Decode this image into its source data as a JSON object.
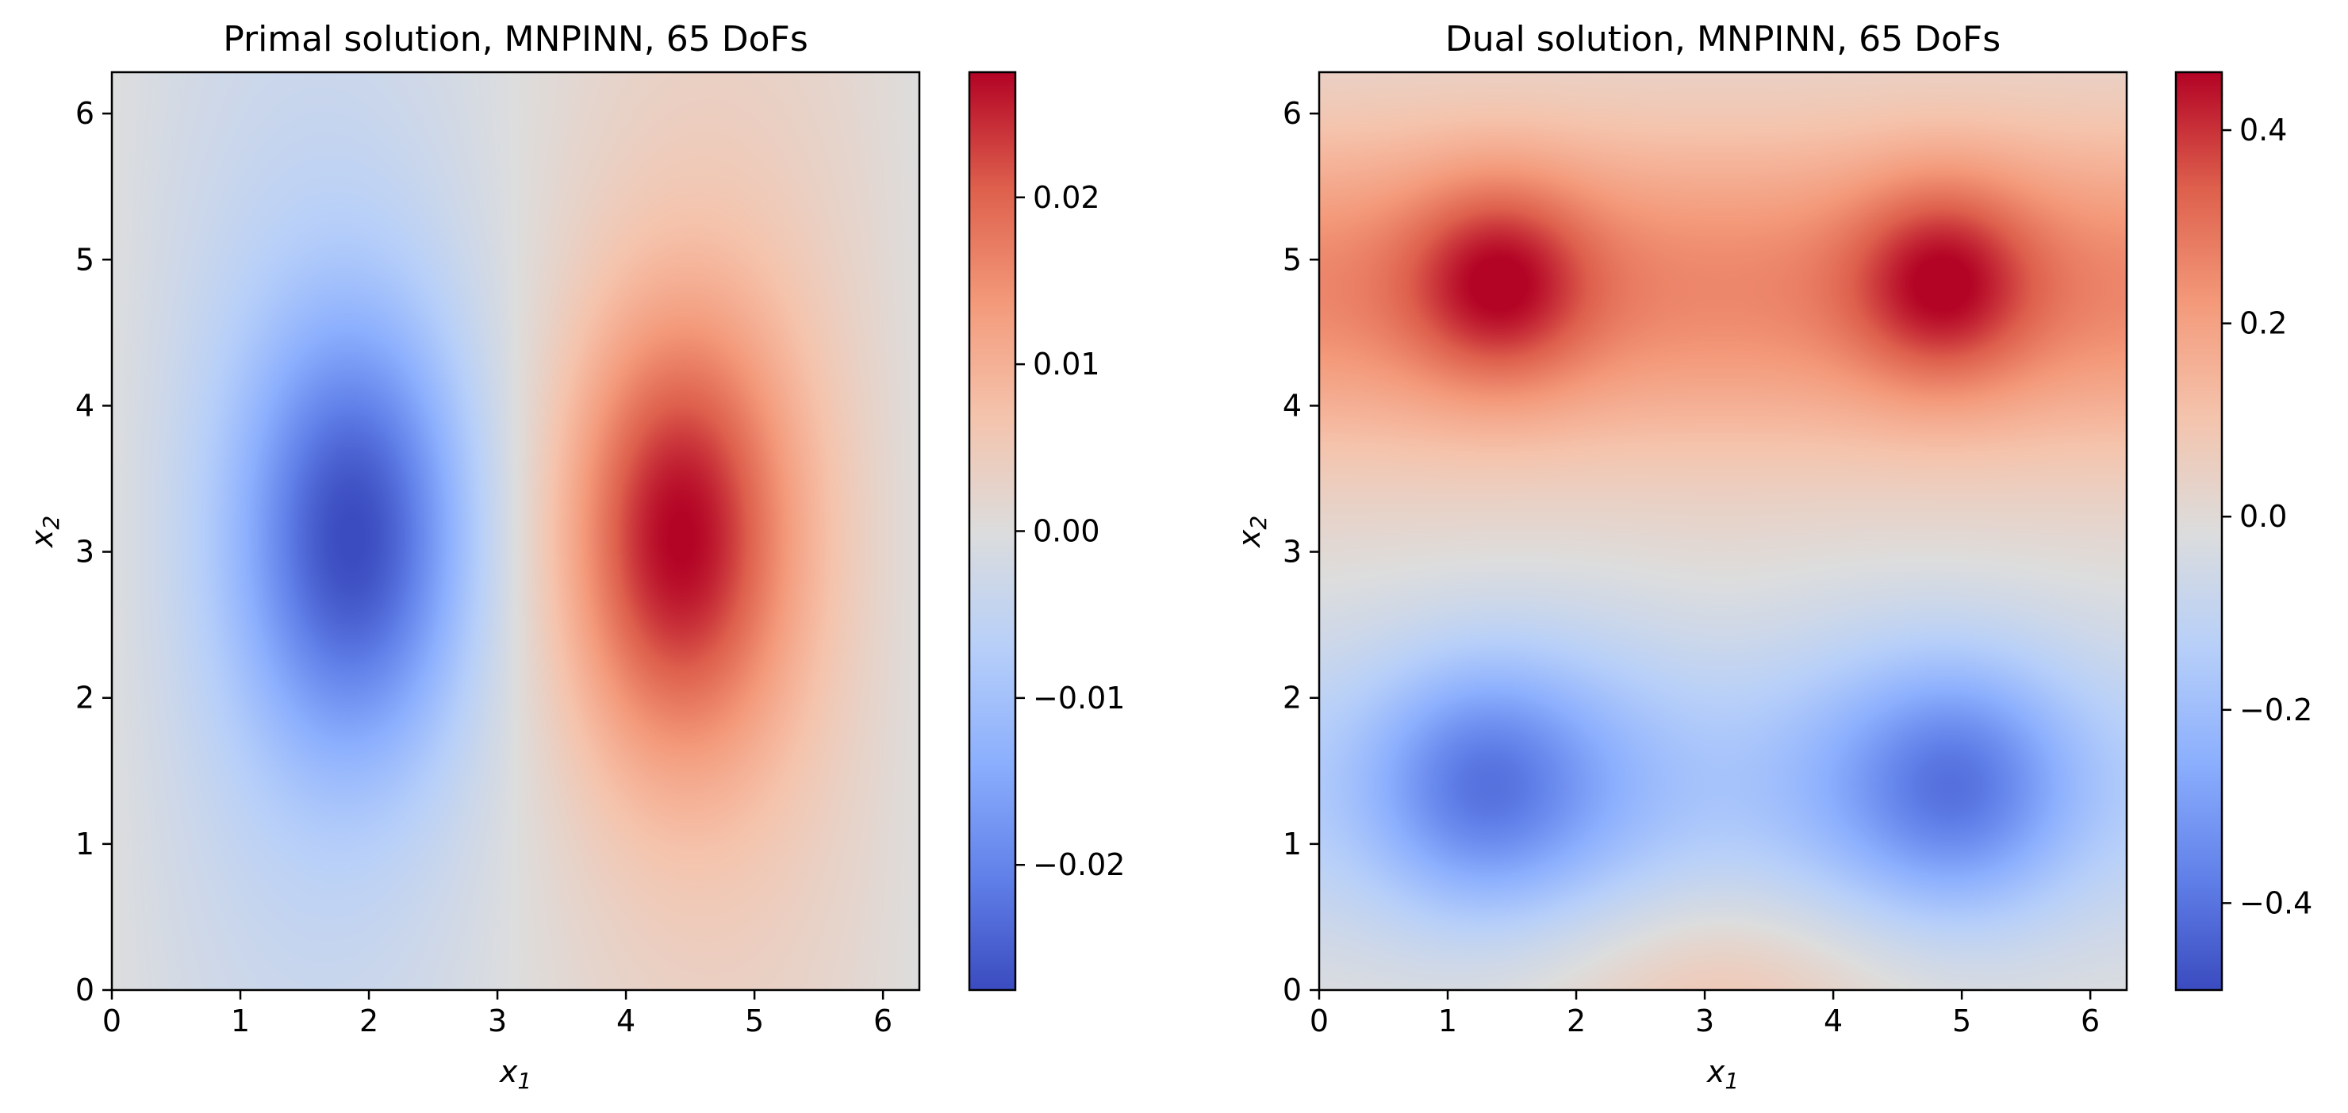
{
  "chart_data": [
    {
      "type": "heatmap",
      "title": "Primal solution, MNPINN, 65 DoFs",
      "xlabel": "x1",
      "ylabel": "x2",
      "xlim": [
        0,
        6.283
      ],
      "ylim": [
        0,
        6.283
      ],
      "x_ticks": [
        "0",
        "1",
        "2",
        "3",
        "4",
        "5",
        "6"
      ],
      "y_ticks": [
        "0",
        "1",
        "2",
        "3",
        "4",
        "5",
        "6"
      ],
      "colormap": "coolwarm",
      "colorbar": {
        "vmin": -0.0275,
        "vmax": 0.0275,
        "ticks": [
          {
            "value": 0.02,
            "label": "0.02"
          },
          {
            "value": 0.01,
            "label": "0.01"
          },
          {
            "value": 0.0,
            "label": "0.00"
          },
          {
            "value": -0.01,
            "label": "−0.01"
          },
          {
            "value": -0.02,
            "label": "−0.02"
          }
        ]
      },
      "field": "primal",
      "extrema": [
        {
          "x": 1.9,
          "y": 3.1,
          "value": -0.0275
        },
        {
          "x": 4.4,
          "y": 3.1,
          "value": 0.0275
        }
      ]
    },
    {
      "type": "heatmap",
      "title": "Dual solution, MNPINN, 65 DoFs",
      "xlabel": "x1",
      "ylabel": "x2",
      "xlim": [
        0,
        6.283
      ],
      "ylim": [
        0,
        6.283
      ],
      "x_ticks": [
        "0",
        "1",
        "2",
        "3",
        "4",
        "5",
        "6"
      ],
      "y_ticks": [
        "0",
        "1",
        "2",
        "3",
        "4",
        "5",
        "6"
      ],
      "colormap": "coolwarm",
      "colorbar": {
        "vmin": -0.49,
        "vmax": 0.46,
        "ticks": [
          {
            "value": 0.4,
            "label": "0.4"
          },
          {
            "value": 0.2,
            "label": "0.2"
          },
          {
            "value": 0.0,
            "label": "0.0"
          },
          {
            "value": -0.2,
            "label": "−0.2"
          },
          {
            "value": -0.4,
            "label": "−0.4"
          }
        ]
      },
      "field": "dual",
      "extrema": [
        {
          "x": 1.4,
          "y": 4.85,
          "value": 0.46
        },
        {
          "x": 4.85,
          "y": 4.85,
          "value": 0.46
        },
        {
          "x": 1.25,
          "y": 1.4,
          "value": -0.49
        },
        {
          "x": 5.0,
          "y": 1.4,
          "value": -0.49
        }
      ]
    }
  ]
}
